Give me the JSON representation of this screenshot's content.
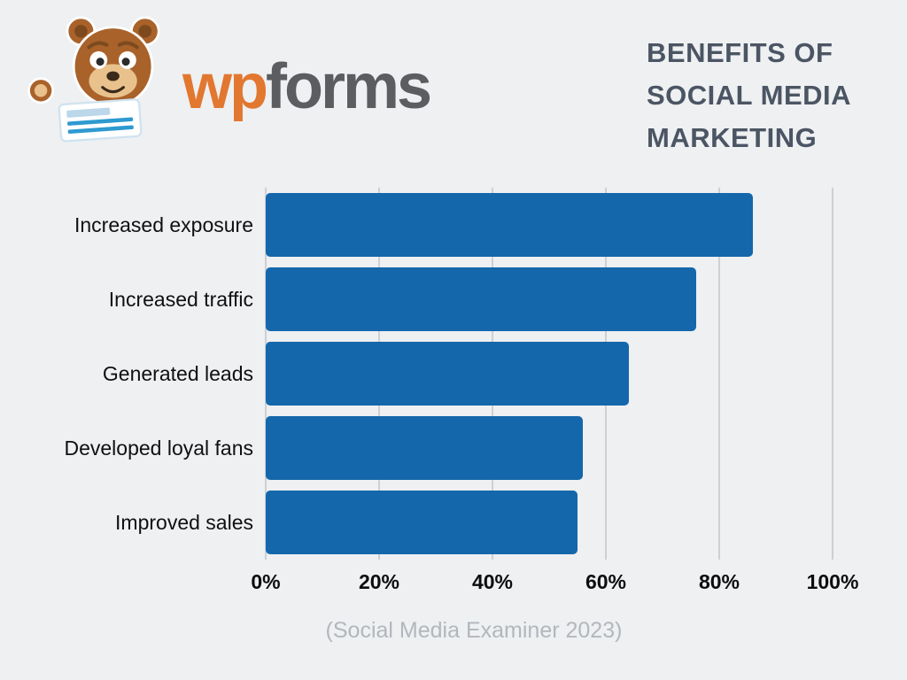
{
  "page": {
    "background": "#eef0f2"
  },
  "logo": {
    "brand_first": "wp",
    "brand_second": "forms",
    "brand_first_color": "#e27730",
    "brand_second_color": "#5b5d60"
  },
  "header": {
    "title_lines": [
      "BENEFITS OF",
      "SOCIAL MEDIA",
      "MARKETING"
    ],
    "title_color": "#4b5563"
  },
  "chart_data": {
    "type": "bar",
    "orientation": "horizontal",
    "title": "Benefits of Social Media Marketing",
    "categories": [
      "Increased exposure",
      "Increased traffic",
      "Generated leads",
      "Developed loyal fans",
      "Improved sales"
    ],
    "values": [
      86,
      76,
      64,
      56,
      55
    ],
    "xlim": [
      0,
      100
    ],
    "x_ticks": [
      "0%",
      "20%",
      "40%",
      "60%",
      "80%",
      "100%"
    ],
    "bar_color": "#1467ab",
    "gridline_color": "#cdd0d4",
    "grid": "vertical",
    "legend": "none",
    "source": "(Social Media Examiner 2023)"
  }
}
